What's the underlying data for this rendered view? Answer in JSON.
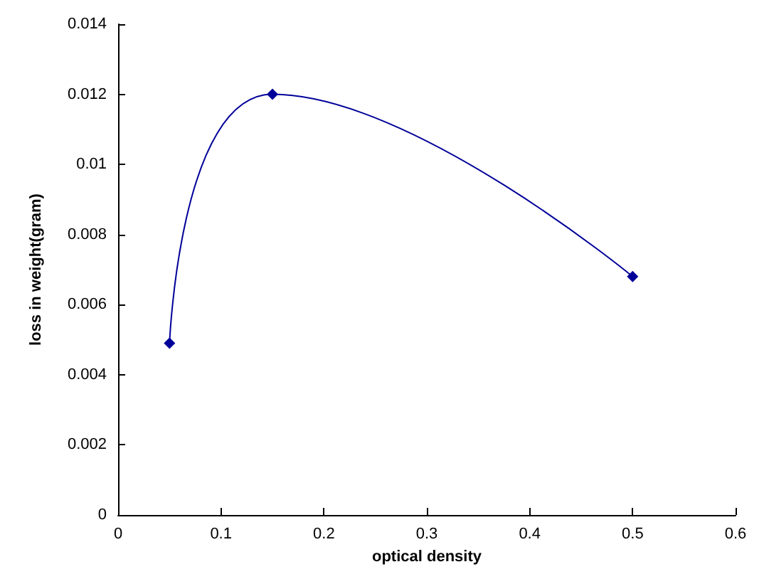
{
  "chart_data": {
    "type": "line",
    "xlabel": "optical density",
    "ylabel": "loss in weight(gram)",
    "x": [
      0.05,
      0.15,
      0.5
    ],
    "series": [
      {
        "color": "#000099",
        "values": [
          0.0049,
          0.012,
          0.0068
        ]
      }
    ],
    "xlim": [
      0,
      0.6
    ],
    "xticks": [
      0,
      0.1,
      0.2,
      0.3,
      0.4,
      0.5,
      0.6
    ],
    "ylim": [
      0,
      0.014
    ],
    "yticks": [
      0,
      0.002,
      0.004,
      0.006,
      0.008,
      0.01,
      0.012,
      0.014
    ],
    "grid": false,
    "marker": "diamond",
    "line_style": "solid"
  }
}
